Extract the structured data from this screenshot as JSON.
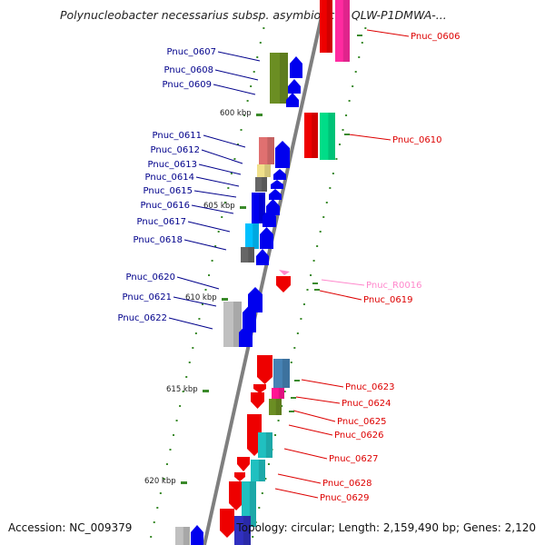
{
  "title": "Polynucleobacter necessarius subsp. asymbioticus QLW-P1DMWA-...",
  "footer": {
    "accession": "Accession: NC_009379",
    "topology": "Topology: circular; Length: 2,159,490 bp; Genes: 2,120"
  },
  "colors": {
    "backbone": "#7f7f7f",
    "left_label": "#00008b",
    "right_label": "#dd0000",
    "rna_label": "#ff88cc",
    "tick": "#3a8a2a"
  },
  "scale_labels": [
    "600 kbp",
    "605 kbp",
    "610 kbp",
    "615 kbp",
    "620 kbp"
  ],
  "left_genes": [
    {
      "label": "Pnuc_0607"
    },
    {
      "label": "Pnuc_0608"
    },
    {
      "label": "Pnuc_0609"
    },
    {
      "label": "Pnuc_0611"
    },
    {
      "label": "Pnuc_0612"
    },
    {
      "label": "Pnuc_0613"
    },
    {
      "label": "Pnuc_0614"
    },
    {
      "label": "Pnuc_0615"
    },
    {
      "label": "Pnuc_0616"
    },
    {
      "label": "Pnuc_0617"
    },
    {
      "label": "Pnuc_0618"
    },
    {
      "label": "Pnuc_0620"
    },
    {
      "label": "Pnuc_0621"
    },
    {
      "label": "Pnuc_0622"
    }
  ],
  "right_genes": [
    {
      "label": "Pnuc_0606"
    },
    {
      "label": "Pnuc_0610"
    },
    {
      "label": "Pnuc_R0016"
    },
    {
      "label": "Pnuc_0619"
    },
    {
      "label": "Pnuc_0623"
    },
    {
      "label": "Pnuc_0624"
    },
    {
      "label": "Pnuc_0625"
    },
    {
      "label": "Pnuc_0626"
    },
    {
      "label": "Pnuc_0627"
    },
    {
      "label": "Pnuc_0628"
    },
    {
      "label": "Pnuc_0629"
    }
  ]
}
